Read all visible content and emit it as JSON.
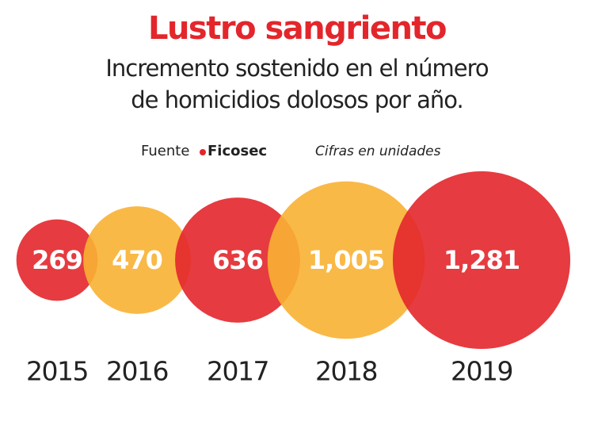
{
  "chart_data": {
    "type": "bubble",
    "title": "Lustro sangriento",
    "subtitle": [
      "Incremento sostenido en el número",
      "de homicidios dolosos por año."
    ],
    "source_label": "Fuente",
    "source": "Ficosec",
    "note": "Cifras en unidades",
    "categories": [
      "2015",
      "2016",
      "2017",
      "2018",
      "2019"
    ],
    "values": [
      269,
      470,
      636,
      1005,
      1281
    ],
    "value_labels": [
      "269",
      "470",
      "636",
      "1,005",
      "1,281"
    ],
    "colors": [
      "#e3262b",
      "#f8b133",
      "#e3262b",
      "#f8b133",
      "#e3262b"
    ]
  }
}
